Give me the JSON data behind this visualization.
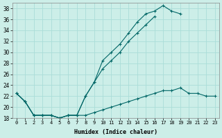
{
  "xlabel": "Humidex (Indice chaleur)",
  "bg_color": "#cceee8",
  "grid_color": "#aaddd8",
  "line_color": "#006666",
  "xlim": [
    -0.5,
    23.5
  ],
  "ylim": [
    18,
    39
  ],
  "yticks": [
    18,
    20,
    22,
    24,
    26,
    28,
    30,
    32,
    34,
    36,
    38
  ],
  "xticks": [
    0,
    1,
    2,
    3,
    4,
    5,
    6,
    7,
    8,
    9,
    10,
    11,
    12,
    13,
    14,
    15,
    16,
    17,
    18,
    19,
    20,
    21,
    22,
    23
  ],
  "line1_x": [
    0,
    1,
    2,
    3,
    4,
    5,
    6,
    7,
    8,
    9,
    10,
    11,
    12,
    13,
    14,
    15,
    16,
    17,
    18,
    19,
    20,
    21,
    22,
    23
  ],
  "line1_y": [
    22.5,
    21.0,
    18.5,
    18.5,
    18.5,
    18.0,
    18.5,
    18.5,
    18.5,
    19.0,
    19.5,
    20.0,
    20.5,
    21.0,
    21.5,
    22.0,
    22.5,
    23.0,
    23.0,
    23.5,
    22.5,
    22.5,
    22.0,
    22.0
  ],
  "line2_x": [
    0,
    1,
    2,
    3,
    4,
    5,
    6,
    7,
    8,
    9,
    10,
    11,
    12,
    13,
    14,
    15,
    16,
    17,
    18,
    19,
    20,
    21,
    22,
    23
  ],
  "line2_y": [
    22.5,
    21.0,
    18.5,
    18.5,
    18.5,
    18.0,
    18.5,
    18.5,
    22.0,
    24.5,
    28.5,
    30.0,
    31.5,
    33.5,
    35.5,
    37.0,
    37.5,
    38.5,
    37.5,
    37.0,
    null,
    null,
    null,
    null
  ],
  "line3_x": [
    0,
    1,
    2,
    3,
    4,
    5,
    6,
    7,
    8,
    9,
    10,
    11,
    12,
    13,
    14,
    15,
    16,
    17,
    18,
    19,
    20,
    21,
    22,
    23
  ],
  "line3_y": [
    22.5,
    21.0,
    18.5,
    18.5,
    18.5,
    18.0,
    18.5,
    18.5,
    22.0,
    24.5,
    27.0,
    28.5,
    30.0,
    32.0,
    33.5,
    35.0,
    36.5,
    null,
    null,
    null,
    null,
    null,
    null,
    null
  ]
}
